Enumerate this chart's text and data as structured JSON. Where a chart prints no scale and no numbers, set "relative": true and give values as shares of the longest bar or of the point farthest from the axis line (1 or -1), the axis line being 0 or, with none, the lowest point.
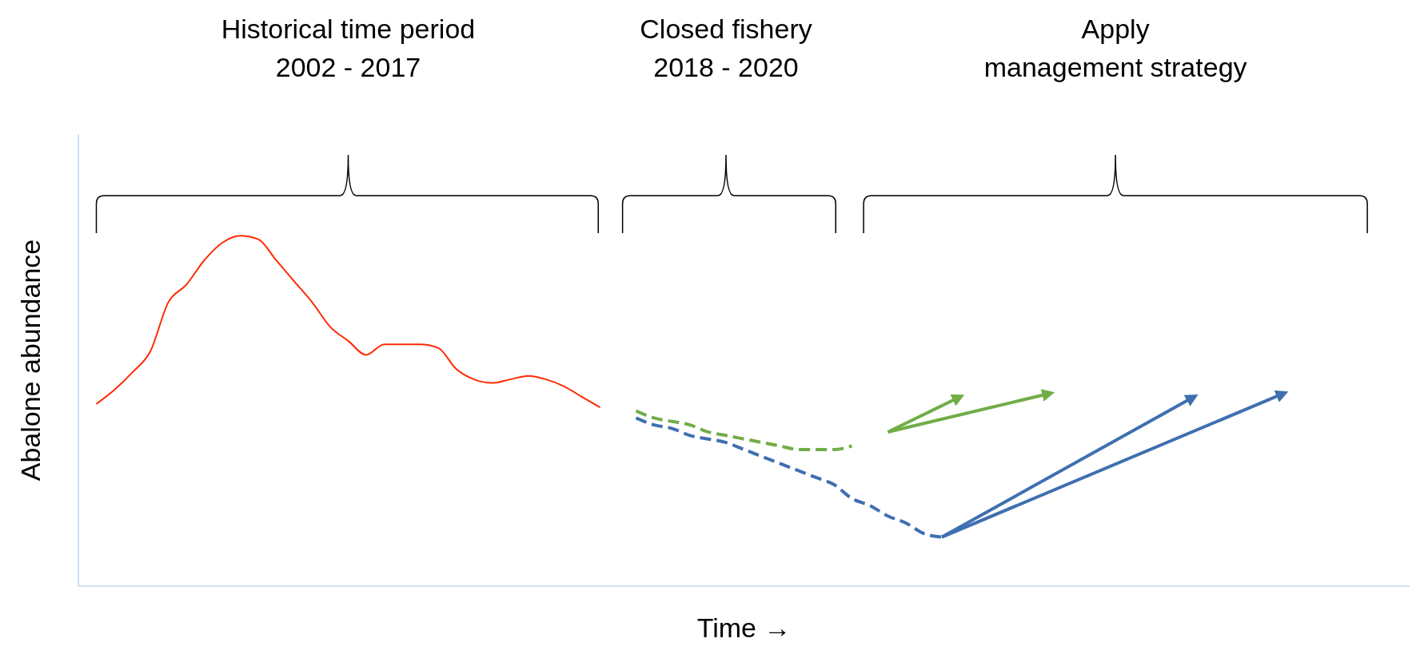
{
  "chart_data": {
    "type": "line",
    "relative": true,
    "xlabel": "Time →",
    "ylabel": "Abalone abundance",
    "annotations": [
      "Historical time period\n2002 - 2017",
      "Closed fishery\n2018 - 2020",
      "Apply\nmanagement strategy"
    ],
    "categories": [
      null,
      null,
      null,
      null,
      null,
      null,
      null,
      null,
      null,
      null,
      null,
      null,
      null,
      null,
      null,
      null,
      null,
      null,
      null,
      null,
      null,
      null,
      null,
      null,
      null,
      null,
      null,
      null,
      null,
      null,
      null,
      null,
      null,
      null,
      null,
      null,
      null,
      null,
      null,
      null,
      null,
      null,
      null,
      null,
      null,
      null,
      null,
      null,
      null,
      null,
      null,
      null,
      null,
      null,
      null,
      null,
      null,
      null,
      null,
      null,
      null,
      null,
      null,
      null,
      null,
      null,
      null
    ],
    "series": [
      {
        "color": "#ff2a00",
        "line_style": "solid",
        "values": [
          0.52,
          0.56,
          0.61,
          0.67,
          0.81,
          0.86,
          0.93,
          0.98,
          1,
          0.99,
          0.93,
          0.87,
          0.81,
          0.74,
          0.7,
          0.66,
          0.69,
          0.69,
          0.69,
          0.68,
          0.62,
          0.59,
          0.58,
          0.59,
          0.6,
          0.59,
          0.57,
          0.54,
          0.51,
          null,
          null,
          null,
          null,
          null,
          null,
          null,
          null,
          null,
          null,
          null,
          null,
          null,
          null,
          null,
          null,
          null,
          null,
          null,
          null,
          null,
          null,
          null,
          null,
          null,
          null,
          null,
          null,
          null,
          null,
          null,
          null,
          null,
          null,
          null,
          null,
          null,
          null
        ]
      },
      {
        "color": "#70ad47",
        "line_style": "dashed",
        "values": [
          null,
          null,
          null,
          null,
          null,
          null,
          null,
          null,
          null,
          null,
          null,
          null,
          null,
          null,
          null,
          null,
          null,
          null,
          null,
          null,
          null,
          null,
          null,
          null,
          null,
          null,
          null,
          null,
          null,
          null,
          0.5,
          0.48,
          0.47,
          0.46,
          0.44,
          0.43,
          0.42,
          0.41,
          0.4,
          0.39,
          0.39,
          0.39,
          0.4,
          null,
          null,
          null,
          null,
          null,
          null,
          null,
          null,
          null,
          null,
          null,
          null,
          null,
          null,
          null,
          null,
          null,
          null,
          null,
          null,
          null,
          null,
          null,
          null
        ]
      },
      {
        "color": "#3f6fb0",
        "line_style": "dashed",
        "values": [
          null,
          null,
          null,
          null,
          null,
          null,
          null,
          null,
          null,
          null,
          null,
          null,
          null,
          null,
          null,
          null,
          null,
          null,
          null,
          null,
          null,
          null,
          null,
          null,
          null,
          null,
          null,
          null,
          null,
          null,
          0.48,
          0.46,
          0.45,
          0.43,
          0.42,
          0.41,
          0.39,
          0.37,
          0.35,
          0.33,
          0.31,
          0.29,
          0.25,
          0.23,
          0.2,
          0.18,
          0.15,
          0.14,
          null,
          null,
          null,
          null,
          null,
          null,
          null,
          null,
          null,
          null,
          null,
          null,
          null,
          null,
          null,
          null,
          null,
          null,
          null
        ]
      },
      {
        "color": "#70ad47",
        "line_style": "solid",
        "values": [
          null,
          null,
          null,
          null,
          null,
          null,
          null,
          null,
          null,
          null,
          null,
          null,
          null,
          null,
          null,
          null,
          null,
          null,
          null,
          null,
          null,
          null,
          null,
          null,
          null,
          null,
          null,
          null,
          null,
          null,
          null,
          null,
          null,
          null,
          null,
          null,
          null,
          null,
          null,
          null,
          null,
          null,
          null,
          null,
          0.44,
          null,
          null,
          null,
          0.54,
          null,
          null,
          null,
          null,
          null,
          null,
          null,
          null,
          null,
          null,
          null,
          null,
          null,
          null,
          null,
          null,
          null,
          null
        ]
      },
      {
        "color": "#70ad47",
        "line_style": "solid",
        "values": [
          null,
          null,
          null,
          null,
          null,
          null,
          null,
          null,
          null,
          null,
          null,
          null,
          null,
          null,
          null,
          null,
          null,
          null,
          null,
          null,
          null,
          null,
          null,
          null,
          null,
          null,
          null,
          null,
          null,
          null,
          null,
          null,
          null,
          null,
          null,
          null,
          null,
          null,
          null,
          null,
          null,
          null,
          null,
          null,
          0.44,
          null,
          null,
          null,
          null,
          null,
          null,
          null,
          null,
          0.55,
          null,
          null,
          null,
          null,
          null,
          null,
          null,
          null,
          null,
          null,
          null,
          null,
          null
        ]
      },
      {
        "color": "#3f6fb0",
        "line_style": "solid",
        "values": [
          null,
          null,
          null,
          null,
          null,
          null,
          null,
          null,
          null,
          null,
          null,
          null,
          null,
          null,
          null,
          null,
          null,
          null,
          null,
          null,
          null,
          null,
          null,
          null,
          null,
          null,
          null,
          null,
          null,
          null,
          null,
          null,
          null,
          null,
          null,
          null,
          null,
          null,
          null,
          null,
          null,
          null,
          null,
          null,
          null,
          null,
          null,
          0.14,
          null,
          null,
          null,
          null,
          null,
          null,
          null,
          null,
          null,
          null,
          null,
          null,
          null,
          0.54,
          null,
          null,
          null,
          null,
          null
        ]
      },
      {
        "color": "#3f6fb0",
        "line_style": "solid",
        "values": [
          null,
          null,
          null,
          null,
          null,
          null,
          null,
          null,
          null,
          null,
          null,
          null,
          null,
          null,
          null,
          null,
          null,
          null,
          null,
          null,
          null,
          null,
          null,
          null,
          null,
          null,
          null,
          null,
          null,
          null,
          null,
          null,
          null,
          null,
          null,
          null,
          null,
          null,
          null,
          null,
          null,
          null,
          null,
          null,
          null,
          null,
          null,
          0.14,
          null,
          null,
          null,
          null,
          null,
          null,
          null,
          null,
          null,
          null,
          null,
          null,
          null,
          null,
          null,
          null,
          null,
          null,
          0.55
        ]
      }
    ]
  }
}
